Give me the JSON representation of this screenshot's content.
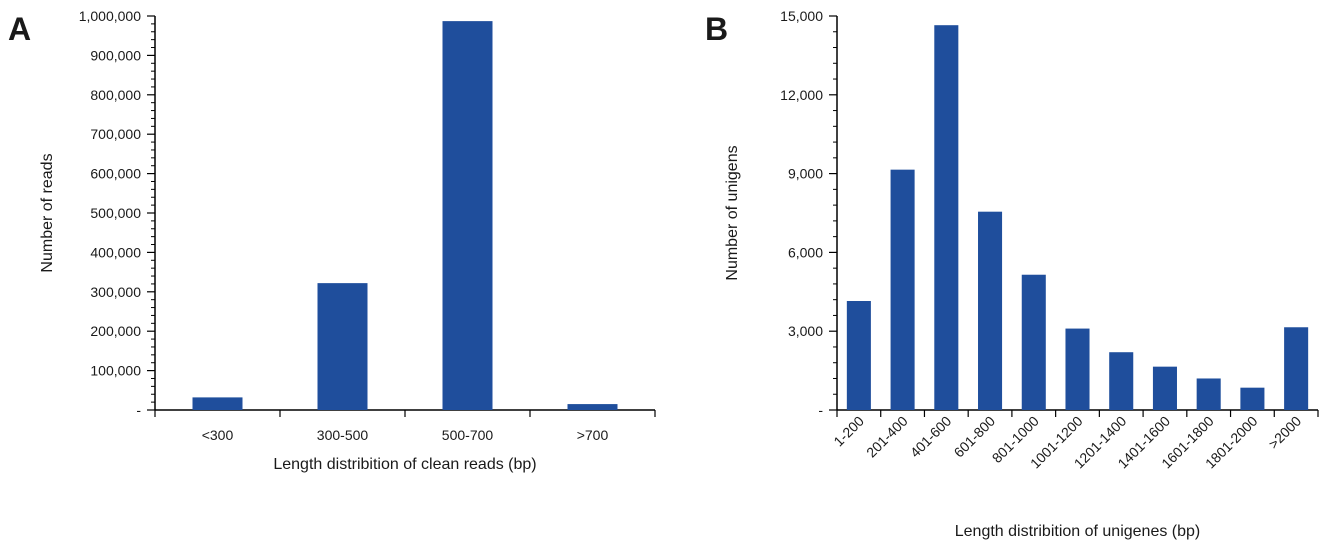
{
  "chart_data": [
    {
      "type": "bar",
      "panel_label": "A",
      "categories": [
        "<300",
        "300-500",
        "500-700",
        ">700"
      ],
      "values": [
        32000,
        322000,
        987000,
        15000
      ],
      "ylim": [
        0,
        1000000
      ],
      "yticks": [
        0,
        100000,
        200000,
        300000,
        400000,
        500000,
        600000,
        700000,
        800000,
        900000,
        1000000
      ],
      "ytick_labels": [
        "-",
        "100,000",
        "200,000",
        "300,000",
        "400,000",
        "500,000",
        "600,000",
        "700,000",
        "800,000",
        "900,000",
        "1,000,000"
      ],
      "xlabel": "Length distribition of clean reads (bp)",
      "ylabel": "Number of reads",
      "bar_color": "#1f4e9c",
      "grid": false,
      "tick_label_rotation": 0
    },
    {
      "type": "bar",
      "panel_label": "B",
      "categories": [
        "1-200",
        "201-400",
        "401-600",
        "601-800",
        "801-1000",
        "1001-1200",
        "1201-1400",
        "1401-1600",
        "1601-1800",
        "1801-2000",
        ">2000"
      ],
      "values": [
        4150,
        9150,
        14650,
        7550,
        5150,
        3100,
        2200,
        1650,
        1200,
        850,
        3150
      ],
      "ylim": [
        0,
        15000
      ],
      "yticks": [
        0,
        3000,
        6000,
        9000,
        12000,
        15000
      ],
      "ytick_labels": [
        "-",
        "3,000",
        "6,000",
        "9,000",
        "12,000",
        "15,000"
      ],
      "xlabel": "Length distribition of unigenes (bp)",
      "ylabel": "Number of unigens",
      "bar_color": "#1f4e9c",
      "grid": false,
      "tick_label_rotation": -45
    }
  ]
}
